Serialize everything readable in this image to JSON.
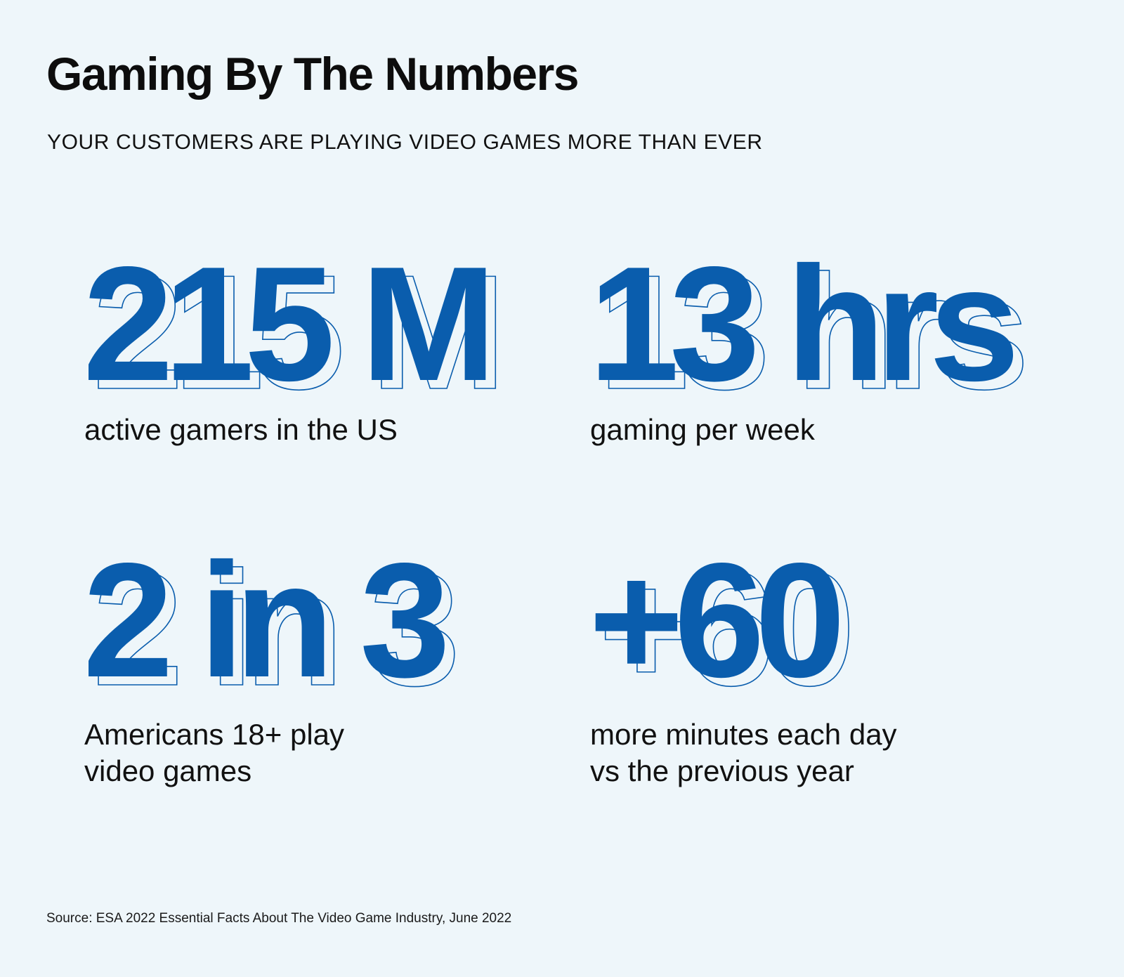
{
  "header": {
    "title": "Gaming By The Numbers",
    "subtitle": "YOUR CUSTOMERS ARE PLAYING VIDEO GAMES MORE THAN EVER"
  },
  "stats": [
    {
      "value": "215 M",
      "description": "active gamers in the US"
    },
    {
      "value": "13 hrs",
      "description": "gaming per week"
    },
    {
      "value": "2 in 3",
      "description": "Americans 18+ play\nvideo games"
    },
    {
      "value": "+60",
      "description": "more minutes each day\nvs the previous year"
    }
  ],
  "footer": {
    "source": "Source: ESA 2022 Essential Facts About The Video Game Industry, June 2022"
  },
  "colors": {
    "background": "#eef6fa",
    "accent": "#0a5dad",
    "text": "#111111"
  }
}
